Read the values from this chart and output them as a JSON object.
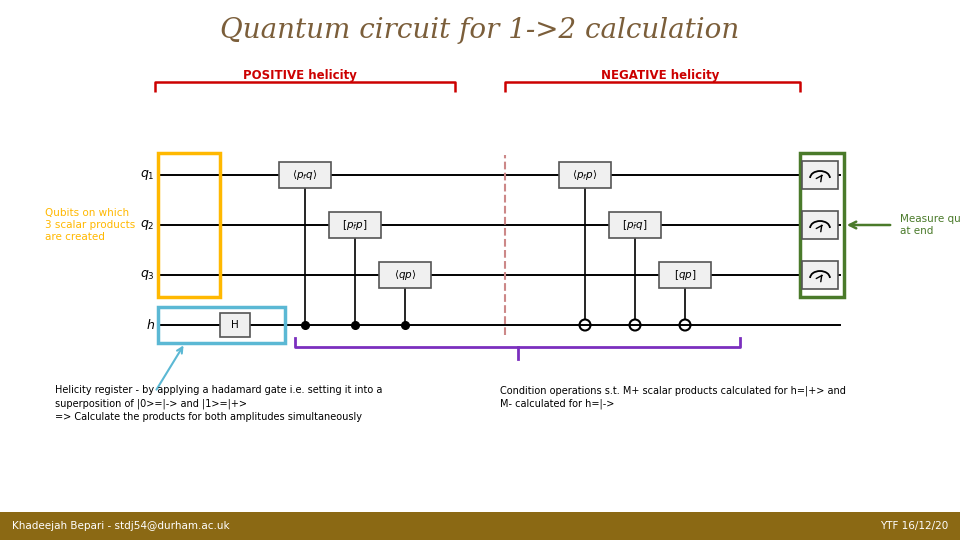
{
  "title": "Quantum circuit for 1->2 calculation",
  "title_color": "#7B5E3A",
  "title_fontsize": 20,
  "bg_color": "#FFFFFF",
  "footer_bar_color": "#8B6914",
  "footer_text_left": "Khadeejah Bepari - stdj54@durham.ac.uk",
  "footer_text_right": "YTF 16/12/20",
  "footer_text_color": "#FFFFFF",
  "positive_label": "POSITIVE helicity",
  "negative_label": "NEGATIVE helicity",
  "label_color": "#CC0000",
  "yellow_box_color": "#FFB800",
  "blue_box_color": "#5BB8D4",
  "green_box_color": "#4A7A2A",
  "annotation_left": "Qubits on which\n3 scalar products\nare created",
  "annotation_right": "Measure qubits\nat end",
  "annotation_color_left": "#FFB800",
  "annotation_color_right": "#4A7A2A",
  "helicity_note_left": "Helicity register - by applying a hadamard gate i.e. setting it into a\nsuperposition of |0>=|-> and |1>=|+>\n=> Calculate the products for both amplitudes simultaneously",
  "helicity_note_right": "Condition operations s.t. M+ scalar products calculated for h=|+> and\nM- calculated for h=|->",
  "purple_color": "#7B2FBE",
  "wire_color": "#000000",
  "dashed_line_color": "#CC8888",
  "gate_edge_color": "#555555",
  "gate_face_color": "#F0F0F0"
}
